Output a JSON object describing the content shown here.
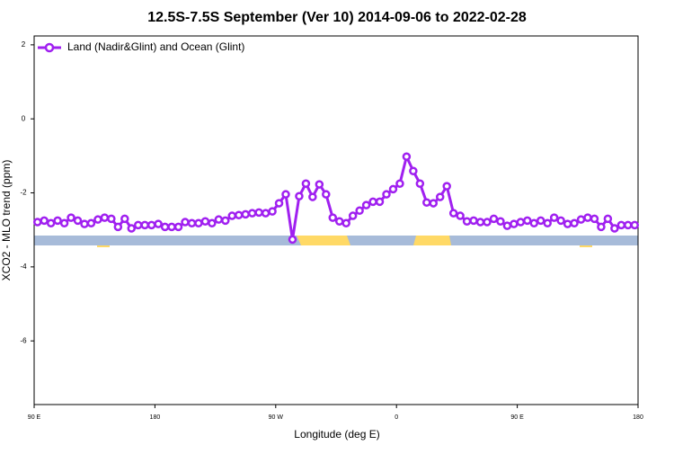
{
  "chart_data": {
    "type": "line",
    "title": "12.5S-7.5S September (Ver 10)   2014-09-06 to 2022-02-28",
    "x_label": "Longitude (deg E)",
    "y_label": "XCO2 - MLO trend (ppm)",
    "x": [
      92.5,
      97.5,
      102.5,
      107.5,
      112.5,
      117.5,
      122.5,
      127.5,
      132.5,
      137.5,
      142.5,
      147.5,
      152.5,
      157.5,
      162.5,
      167.5,
      172.5,
      177.5,
      182.5,
      187.5,
      192.5,
      197.5,
      202.5,
      207.5,
      212.5,
      217.5,
      222.5,
      227.5,
      232.5,
      237.5,
      242.5,
      247.5,
      252.5,
      257.5,
      262.5,
      267.5,
      272.5,
      277.5,
      282.5,
      287.5,
      292.5,
      297.5,
      302.5,
      307.5,
      312.5,
      317.5,
      322.5,
      327.5,
      332.5,
      337.5,
      342.5,
      347.5,
      352.5,
      357.5,
      362.5,
      367.5,
      372.5,
      377.5,
      382.5,
      387.5,
      392.5,
      397.5,
      402.5,
      407.5,
      412.5,
      417.5,
      422.5,
      427.5,
      432.5,
      437.5,
      442.5,
      447.5,
      452.5,
      457.5,
      462.5,
      467.5,
      472.5,
      477.5,
      482.5,
      487.5,
      492.5,
      497.5,
      502.5,
      507.5,
      512.5,
      517.5,
      522.5,
      527.5,
      532.5,
      537.5
    ],
    "series": [
      {
        "name": "Land (Nadir&Glint) and Ocean (Glint)",
        "color": "#a020f0",
        "values": [
          -2.79,
          -2.75,
          -2.82,
          -2.75,
          -2.82,
          -2.67,
          -2.75,
          -2.84,
          -2.82,
          -2.72,
          -2.67,
          -2.7,
          -2.92,
          -2.7,
          -2.96,
          -2.87,
          -2.87,
          -2.87,
          -2.84,
          -2.92,
          -2.92,
          -2.92,
          -2.79,
          -2.82,
          -2.82,
          -2.77,
          -2.82,
          -2.72,
          -2.75,
          -2.62,
          -2.6,
          -2.58,
          -2.55,
          -2.53,
          -2.55,
          -2.5,
          -2.28,
          -2.04,
          -3.26,
          -2.09,
          -1.75,
          -2.11,
          -1.77,
          -2.04,
          -2.67,
          -2.77,
          -2.82,
          -2.62,
          -2.48,
          -2.33,
          -2.24,
          -2.24,
          -2.04,
          -1.9,
          -1.75,
          -1.02,
          -1.41,
          -1.75,
          -2.26,
          -2.28,
          -2.11,
          -1.82,
          -2.55,
          -2.62,
          -2.77,
          -2.75,
          -2.79,
          -2.79,
          -2.7,
          -2.77,
          -2.89,
          -2.84,
          -2.79,
          -2.75,
          -2.82,
          -2.75,
          -2.82,
          -2.67,
          -2.75,
          -2.84,
          -2.82,
          -2.72,
          -2.67,
          -2.7,
          -2.92,
          -2.7,
          -2.96,
          -2.87,
          -2.87,
          -2.87
        ]
      }
    ],
    "xlim": [
      90,
      540
    ],
    "xticks": [
      {
        "value": 90,
        "label": "90 E"
      },
      180,
      {
        "value": 270,
        "label": "90 W"
      },
      {
        "value": 360,
        "label": "0"
      },
      {
        "value": 450,
        "label": "90 E"
      },
      {
        "value": 540,
        "label": "180"
      }
    ],
    "ylim": [
      -7.72,
      2.24
    ],
    "yticks": [
      2,
      0,
      -2,
      -4,
      -6
    ],
    "legend": "top-left"
  }
}
